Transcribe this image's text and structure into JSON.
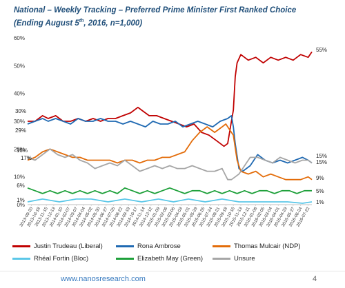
{
  "header": {
    "title_line1": "National – Weekly Tracking – Preferred Prime Minister First Ranked Choice",
    "title_line2_pre": "(Ending August 5",
    "title_line2_sup": "th",
    "title_line2_post": ", 2016, n=1,000)"
  },
  "footer": {
    "url": "www.nanosresearch.com",
    "page_number": "4"
  },
  "chart_data": {
    "type": "line",
    "ylim": [
      0,
      60
    ],
    "y_ticks": [
      "0%",
      "10%",
      "20%",
      "30%",
      "40%",
      "50%",
      "60%"
    ],
    "y_tick_values": [
      0,
      10,
      20,
      30,
      40,
      50,
      60
    ],
    "grid": false,
    "legend_position": "bottom",
    "x_tick_labels": [
      "2013-09-20",
      "2013-10-18",
      "2013-11-15",
      "2013-12-13",
      "2014-01-10",
      "2014-02-07",
      "2014-03-07",
      "2014-04-04",
      "2014-05-02",
      "2014-05-30",
      "2014-06-27",
      "2014-07-25",
      "2014-08-22",
      "2014-09-19",
      "2014-10-17",
      "2014-11-14",
      "2014-12-12",
      "2015-01-09",
      "2015-02-06",
      "2015-03-06",
      "2015-04-03",
      "2015-05-01",
      "2015-05-29",
      "2015-06-26",
      "2015-07-24",
      "2015-08-21",
      "2015-09-18",
      "2015-10-16",
      "2015-11-13",
      "2015-12-11",
      "2016-01-08",
      "2016-02-05",
      "2016-03-04",
      "2016-04-01",
      "2016-04-29",
      "2016-05-27",
      "2016-06-24",
      "2016-07-22"
    ],
    "x_date_range": [
      "2013-09-06",
      "2016-08-05"
    ],
    "series": [
      {
        "name": "Justin Trudeau (Liberal)",
        "color": "#c00000",
        "start_label": "30%",
        "end_label": "55%",
        "points": [
          [
            "2013-09-06",
            30
          ],
          [
            "2013-10-04",
            30
          ],
          [
            "2013-11-01",
            32
          ],
          [
            "2013-11-22",
            31
          ],
          [
            "2013-12-20",
            32
          ],
          [
            "2014-01-17",
            30
          ],
          [
            "2014-02-14",
            30
          ],
          [
            "2014-03-14",
            31
          ],
          [
            "2014-04-11",
            30
          ],
          [
            "2014-05-09",
            31
          ],
          [
            "2014-06-06",
            30
          ],
          [
            "2014-07-04",
            31
          ],
          [
            "2014-08-01",
            31
          ],
          [
            "2014-08-29",
            32
          ],
          [
            "2014-09-26",
            33
          ],
          [
            "2014-10-24",
            35
          ],
          [
            "2014-11-07",
            34
          ],
          [
            "2014-12-05",
            32
          ],
          [
            "2015-01-02",
            32
          ],
          [
            "2015-01-30",
            31
          ],
          [
            "2015-02-27",
            30
          ],
          [
            "2015-03-27",
            29
          ],
          [
            "2015-04-24",
            28
          ],
          [
            "2015-05-22",
            29
          ],
          [
            "2015-06-19",
            26
          ],
          [
            "2015-07-17",
            25
          ],
          [
            "2015-08-14",
            23
          ],
          [
            "2015-09-11",
            21
          ],
          [
            "2015-09-25",
            22
          ],
          [
            "2015-10-09",
            30
          ],
          [
            "2015-10-16",
            34
          ],
          [
            "2015-10-23",
            46
          ],
          [
            "2015-10-30",
            51
          ],
          [
            "2015-11-13",
            54
          ],
          [
            "2015-12-11",
            52
          ],
          [
            "2016-01-08",
            53
          ],
          [
            "2016-02-05",
            51
          ],
          [
            "2016-03-04",
            53
          ],
          [
            "2016-04-01",
            52
          ],
          [
            "2016-04-29",
            53
          ],
          [
            "2016-05-27",
            52
          ],
          [
            "2016-06-24",
            54
          ],
          [
            "2016-07-22",
            53
          ],
          [
            "2016-08-05",
            55
          ]
        ]
      },
      {
        "name": "Rona Ambrose",
        "color": "#1f69b2",
        "start_label": "29%",
        "end_label": "15%",
        "points": [
          [
            "2013-09-06",
            29
          ],
          [
            "2013-10-04",
            30
          ],
          [
            "2013-11-01",
            31
          ],
          [
            "2013-11-22",
            30
          ],
          [
            "2013-12-20",
            31
          ],
          [
            "2014-01-17",
            30
          ],
          [
            "2014-02-14",
            29
          ],
          [
            "2014-03-14",
            31
          ],
          [
            "2014-04-11",
            30
          ],
          [
            "2014-05-09",
            30
          ],
          [
            "2014-06-06",
            31
          ],
          [
            "2014-07-04",
            30
          ],
          [
            "2014-08-01",
            30
          ],
          [
            "2014-08-29",
            29
          ],
          [
            "2014-09-26",
            30
          ],
          [
            "2014-10-24",
            29
          ],
          [
            "2014-11-21",
            28
          ],
          [
            "2014-12-19",
            30
          ],
          [
            "2015-01-16",
            29
          ],
          [
            "2015-02-13",
            29
          ],
          [
            "2015-03-13",
            30
          ],
          [
            "2015-04-10",
            28
          ],
          [
            "2015-05-08",
            29
          ],
          [
            "2015-06-05",
            30
          ],
          [
            "2015-07-03",
            29
          ],
          [
            "2015-07-31",
            28
          ],
          [
            "2015-08-28",
            30
          ],
          [
            "2015-09-25",
            31
          ],
          [
            "2015-10-09",
            32
          ],
          [
            "2015-10-16",
            28
          ],
          [
            "2015-10-23",
            22
          ],
          [
            "2015-11-06",
            13
          ],
          [
            "2015-11-20",
            12
          ],
          [
            "2015-12-18",
            14
          ],
          [
            "2016-01-15",
            18
          ],
          [
            "2016-02-12",
            16
          ],
          [
            "2016-03-11",
            15
          ],
          [
            "2016-04-08",
            16
          ],
          [
            "2016-05-06",
            15
          ],
          [
            "2016-06-03",
            16
          ],
          [
            "2016-07-01",
            17
          ],
          [
            "2016-07-22",
            16
          ],
          [
            "2016-08-05",
            15
          ]
        ]
      },
      {
        "name": "Thomas Mulcair (NDP)",
        "color": "#e36c09",
        "start_label": "16%",
        "end_label": "9%",
        "points": [
          [
            "2013-09-06",
            16
          ],
          [
            "2013-10-04",
            17
          ],
          [
            "2013-11-01",
            19
          ],
          [
            "2013-11-29",
            20
          ],
          [
            "2013-12-27",
            19
          ],
          [
            "2014-01-24",
            18
          ],
          [
            "2014-02-21",
            17
          ],
          [
            "2014-03-21",
            17
          ],
          [
            "2014-04-18",
            16
          ],
          [
            "2014-05-16",
            16
          ],
          [
            "2014-06-13",
            16
          ],
          [
            "2014-07-11",
            16
          ],
          [
            "2014-08-08",
            15
          ],
          [
            "2014-09-05",
            16
          ],
          [
            "2014-10-03",
            16
          ],
          [
            "2014-10-31",
            15
          ],
          [
            "2014-11-28",
            16
          ],
          [
            "2014-12-26",
            16
          ],
          [
            "2015-01-23",
            17
          ],
          [
            "2015-02-20",
            17
          ],
          [
            "2015-03-20",
            18
          ],
          [
            "2015-04-17",
            19
          ],
          [
            "2015-05-15",
            23
          ],
          [
            "2015-06-12",
            26
          ],
          [
            "2015-07-10",
            28
          ],
          [
            "2015-08-07",
            26
          ],
          [
            "2015-09-04",
            28
          ],
          [
            "2015-09-18",
            29
          ],
          [
            "2015-10-02",
            27
          ],
          [
            "2015-10-16",
            25
          ],
          [
            "2015-10-30",
            16
          ],
          [
            "2015-11-13",
            12
          ],
          [
            "2015-12-11",
            11
          ],
          [
            "2016-01-08",
            12
          ],
          [
            "2016-02-05",
            10
          ],
          [
            "2016-03-04",
            11
          ],
          [
            "2016-04-01",
            10
          ],
          [
            "2016-04-29",
            9
          ],
          [
            "2016-05-27",
            9
          ],
          [
            "2016-06-24",
            9
          ],
          [
            "2016-07-22",
            10
          ],
          [
            "2016-08-05",
            9
          ]
        ]
      },
      {
        "name": "Rhéal Fortin (Bloc)",
        "color": "#5bc7e8",
        "start_label": "1%",
        "end_label": "1%",
        "points": [
          [
            "2013-09-06",
            1
          ],
          [
            "2013-11-01",
            2
          ],
          [
            "2014-01-03",
            1
          ],
          [
            "2014-03-07",
            2
          ],
          [
            "2014-05-02",
            2
          ],
          [
            "2014-07-04",
            1
          ],
          [
            "2014-09-05",
            2
          ],
          [
            "2014-11-07",
            1
          ],
          [
            "2015-01-09",
            2
          ],
          [
            "2015-03-06",
            1
          ],
          [
            "2015-05-01",
            2
          ],
          [
            "2015-07-03",
            1
          ],
          [
            "2015-09-04",
            2
          ],
          [
            "2015-11-06",
            1
          ],
          [
            "2016-01-08",
            1
          ],
          [
            "2016-03-04",
            1
          ],
          [
            "2016-05-06",
            1
          ],
          [
            "2016-07-01",
            0.5
          ],
          [
            "2016-08-05",
            1
          ]
        ]
      },
      {
        "name": "Elizabeth May (Green)",
        "color": "#1ea03a",
        "start_label": "6%",
        "end_label": "5%",
        "points": [
          [
            "2013-09-06",
            6
          ],
          [
            "2013-10-04",
            5
          ],
          [
            "2013-11-01",
            4
          ],
          [
            "2013-11-29",
            5
          ],
          [
            "2013-12-27",
            4
          ],
          [
            "2014-01-24",
            5
          ],
          [
            "2014-02-21",
            4
          ],
          [
            "2014-03-21",
            5
          ],
          [
            "2014-04-18",
            4
          ],
          [
            "2014-05-16",
            5
          ],
          [
            "2014-06-13",
            4
          ],
          [
            "2014-07-11",
            5
          ],
          [
            "2014-08-08",
            4
          ],
          [
            "2014-09-05",
            6
          ],
          [
            "2014-10-03",
            5
          ],
          [
            "2014-10-31",
            4
          ],
          [
            "2014-11-28",
            5
          ],
          [
            "2014-12-26",
            4
          ],
          [
            "2015-01-23",
            5
          ],
          [
            "2015-02-20",
            6
          ],
          [
            "2015-03-20",
            5
          ],
          [
            "2015-04-17",
            4
          ],
          [
            "2015-05-15",
            5
          ],
          [
            "2015-06-12",
            5
          ],
          [
            "2015-07-10",
            4
          ],
          [
            "2015-08-07",
            5
          ],
          [
            "2015-09-04",
            4
          ],
          [
            "2015-10-02",
            5
          ],
          [
            "2015-10-30",
            4
          ],
          [
            "2015-11-27",
            5
          ],
          [
            "2015-12-25",
            4
          ],
          [
            "2016-01-22",
            5
          ],
          [
            "2016-02-19",
            5
          ],
          [
            "2016-03-18",
            4
          ],
          [
            "2016-04-15",
            5
          ],
          [
            "2016-05-13",
            5
          ],
          [
            "2016-06-10",
            4
          ],
          [
            "2016-07-08",
            5
          ],
          [
            "2016-08-05",
            5
          ]
        ]
      },
      {
        "name": "Unsure",
        "color": "#a6a6a6",
        "start_label": "17%",
        "end_label": "15%",
        "points": [
          [
            "2013-09-06",
            17
          ],
          [
            "2013-10-04",
            16
          ],
          [
            "2013-11-01",
            18
          ],
          [
            "2013-11-29",
            20
          ],
          [
            "2013-12-27",
            18
          ],
          [
            "2014-01-24",
            17
          ],
          [
            "2014-02-21",
            18
          ],
          [
            "2014-03-21",
            16
          ],
          [
            "2014-04-18",
            15
          ],
          [
            "2014-05-16",
            13
          ],
          [
            "2014-06-13",
            14
          ],
          [
            "2014-07-11",
            15
          ],
          [
            "2014-08-08",
            14
          ],
          [
            "2014-09-05",
            16
          ],
          [
            "2014-10-03",
            14
          ],
          [
            "2014-10-31",
            12
          ],
          [
            "2014-11-28",
            13
          ],
          [
            "2014-12-26",
            14
          ],
          [
            "2015-01-23",
            13
          ],
          [
            "2015-02-20",
            14
          ],
          [
            "2015-03-20",
            13
          ],
          [
            "2015-04-17",
            13
          ],
          [
            "2015-05-15",
            14
          ],
          [
            "2015-06-12",
            13
          ],
          [
            "2015-07-10",
            12
          ],
          [
            "2015-08-07",
            12
          ],
          [
            "2015-09-04",
            13
          ],
          [
            "2015-09-25",
            9
          ],
          [
            "2015-10-09",
            9
          ],
          [
            "2015-10-23",
            10
          ],
          [
            "2015-11-06",
            11
          ],
          [
            "2015-11-20",
            13
          ],
          [
            "2015-12-18",
            17
          ],
          [
            "2016-01-15",
            17
          ],
          [
            "2016-02-12",
            16
          ],
          [
            "2016-03-11",
            15
          ],
          [
            "2016-04-08",
            17
          ],
          [
            "2016-05-06",
            16
          ],
          [
            "2016-06-03",
            15
          ],
          [
            "2016-07-01",
            16
          ],
          [
            "2016-07-22",
            16
          ],
          [
            "2016-08-05",
            15
          ]
        ]
      }
    ]
  }
}
